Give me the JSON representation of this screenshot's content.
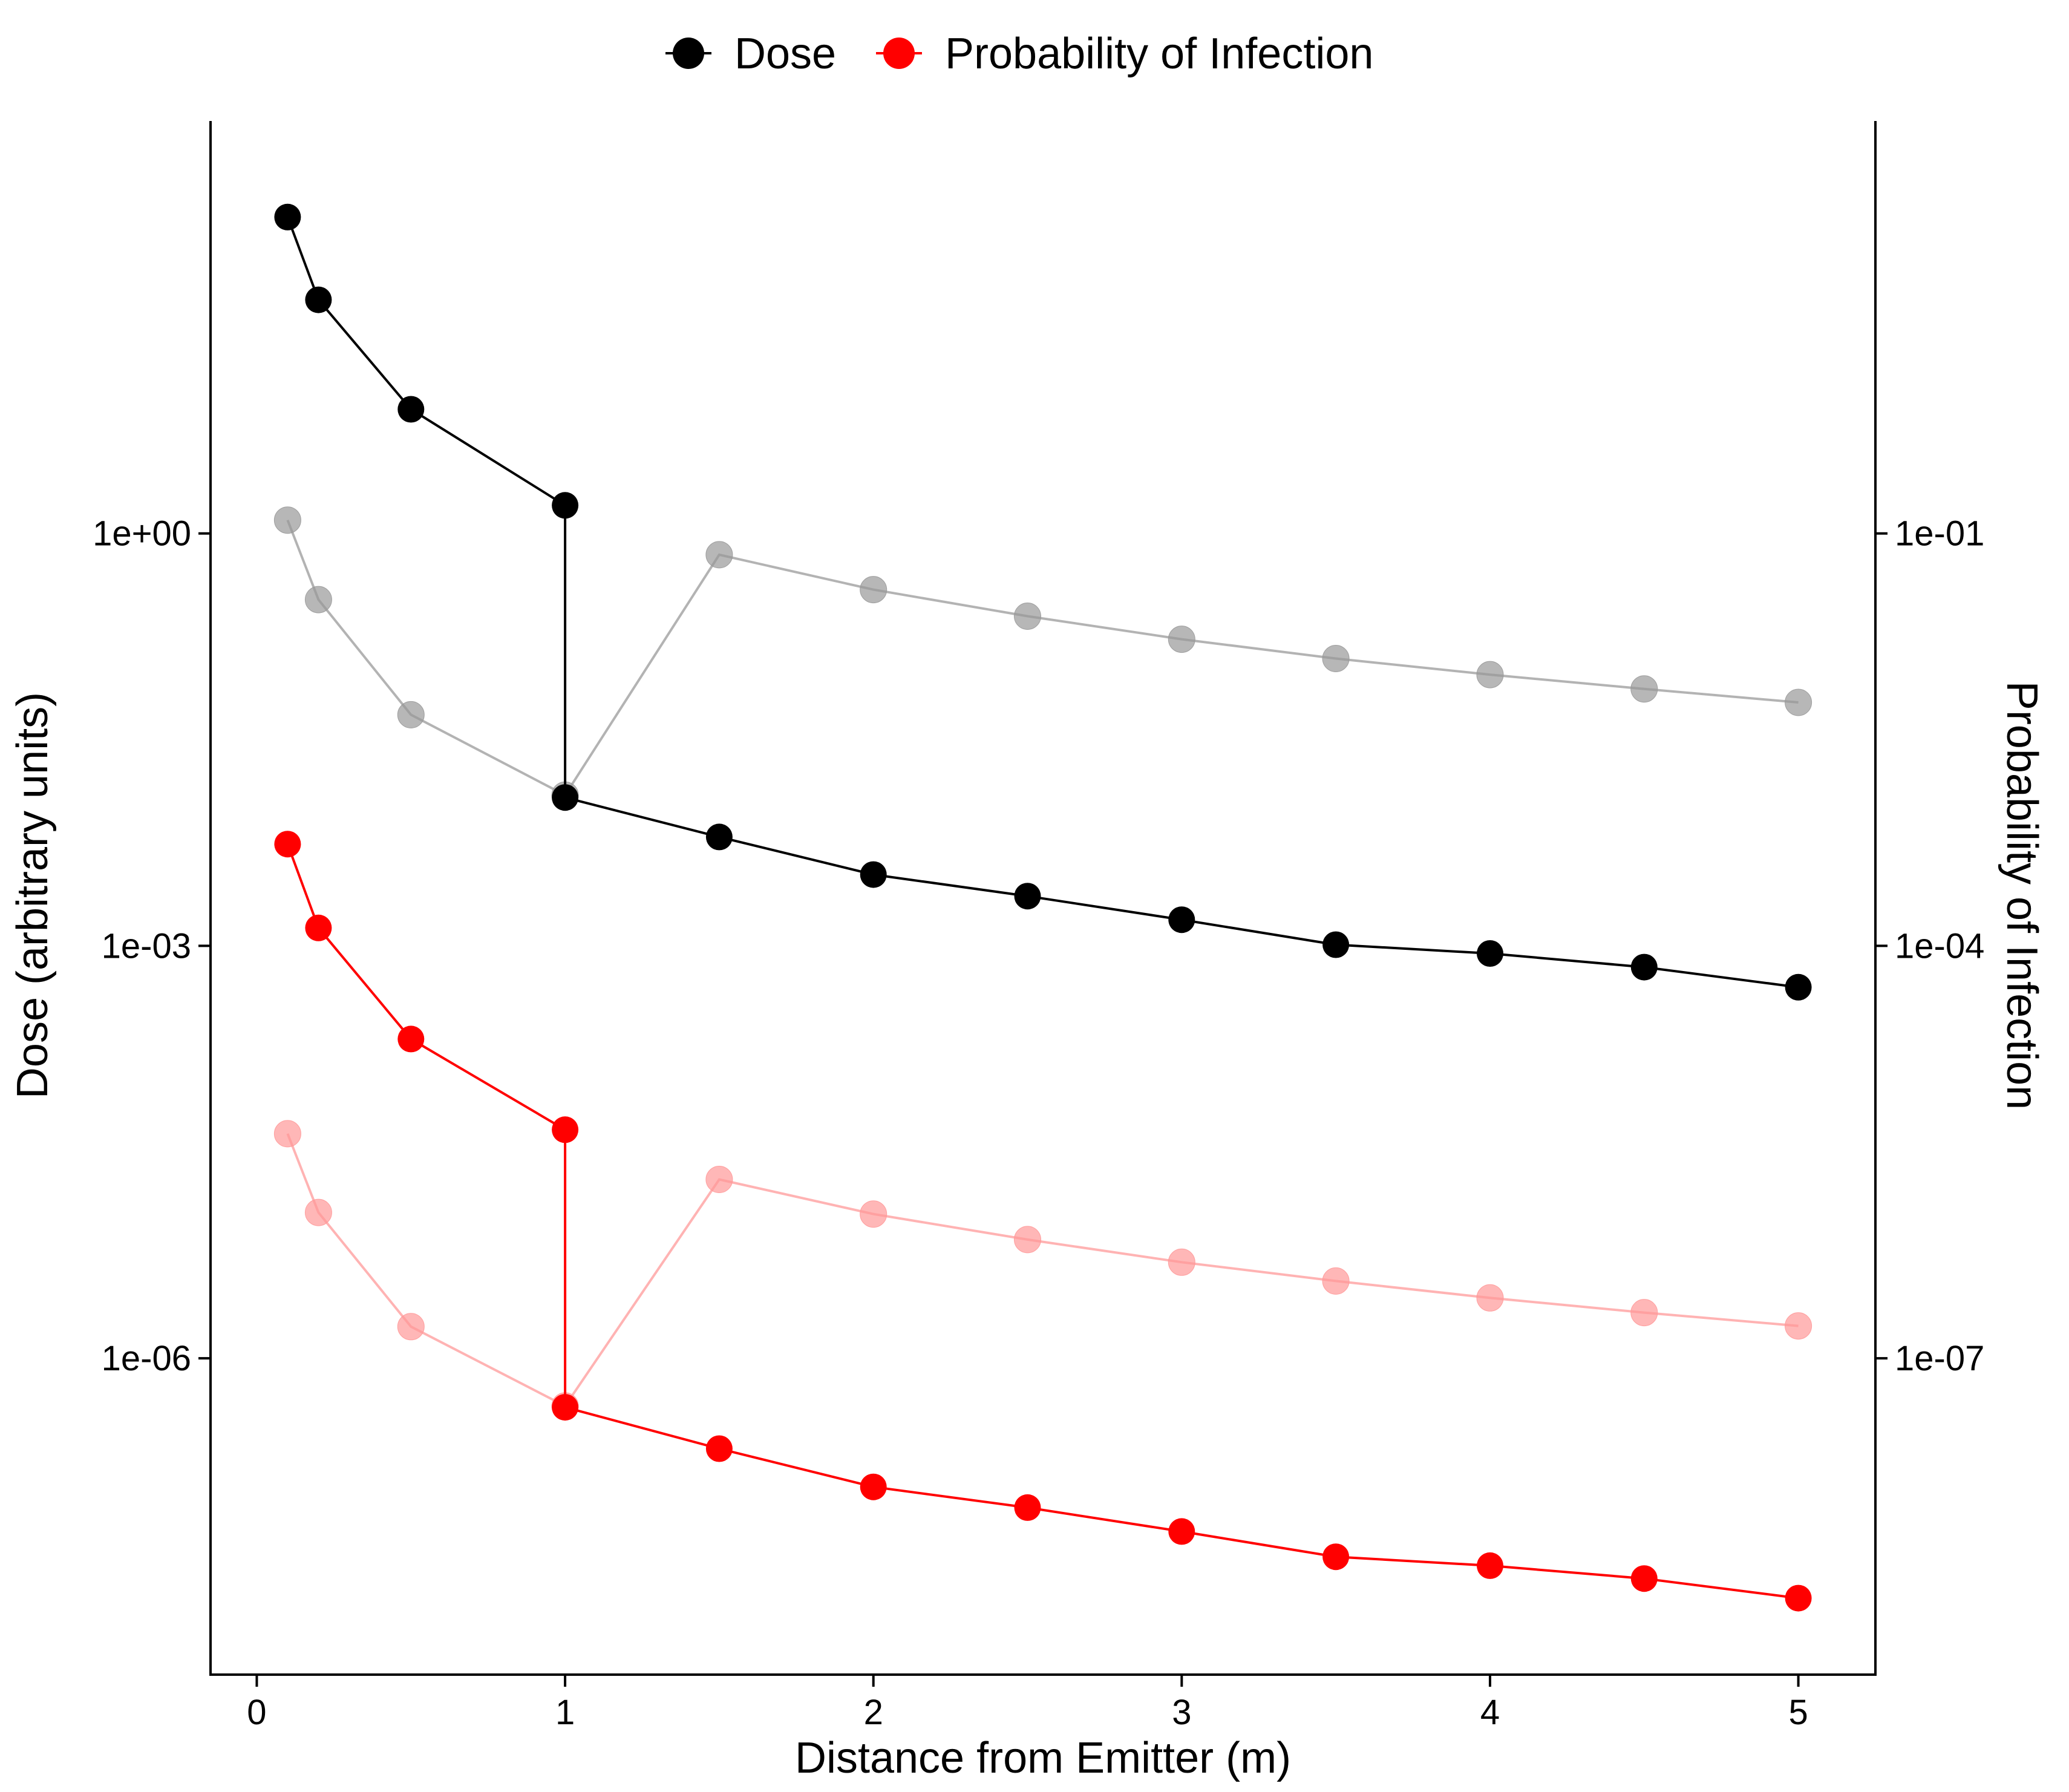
{
  "chart_data": {
    "type": "line",
    "xlabel": "Distance from Emitter (m)",
    "ylabel_left": "Dose (arbitrary units)",
    "ylabel_right": "Probability of Infection",
    "xlim": [
      -0.15,
      5.25
    ],
    "xticks": [
      0,
      1,
      2,
      3,
      4,
      5
    ],
    "left_axis": {
      "scale": "log10",
      "ylim": [
        5e-09,
        1000
      ],
      "ticks": [
        1,
        0.001,
        1e-06
      ],
      "tick_labels": [
        "1e+00",
        "1e-03",
        "1e-06"
      ]
    },
    "right_axis": {
      "scale": "log10",
      "ylim": [
        5e-10,
        100
      ],
      "ticks": [
        0.1,
        0.0001,
        1e-07
      ],
      "tick_labels": [
        "1e-01",
        "1e-04",
        "1e-07"
      ]
    },
    "legend": {
      "position": "top",
      "entries": [
        {
          "label": "Dose",
          "color": "#000000"
        },
        {
          "label": "Probability of Infection",
          "color": "#ff0000"
        }
      ]
    },
    "colors": {
      "dose": "#000000",
      "prob": "#ff0000",
      "dose_faded": "#999999",
      "prob_faded": "#ff9999"
    },
    "series": [
      {
        "name": "Dose",
        "axis": "left",
        "style": "solid",
        "x": [
          0.1,
          0.2,
          0.5,
          1.0,
          1.0,
          1.5,
          2.0,
          2.5,
          3.0,
          3.5,
          4.0,
          4.5,
          5.0
        ],
        "y": [
          200,
          50,
          8,
          1.6,
          0.012,
          0.0062,
          0.0033,
          0.0023,
          0.00155,
          0.00102,
          0.00088,
          0.0007,
          0.0005
        ]
      },
      {
        "name": "Dose",
        "axis": "left",
        "style": "faded",
        "x": [
          0.1,
          0.2,
          0.5,
          1.0,
          1.5,
          2.0,
          2.5,
          3.0,
          3.5,
          4.0,
          4.5,
          5.0
        ],
        "y": [
          1.25,
          0.33,
          0.048,
          0.0125,
          0.7,
          0.39,
          0.25,
          0.17,
          0.123,
          0.094,
          0.074,
          0.059
        ]
      },
      {
        "name": "Probability of Infection",
        "axis": "left",
        "style": "solid",
        "x": [
          0.1,
          0.2,
          0.5,
          1.0,
          1.0,
          1.5,
          2.0,
          2.5,
          3.0,
          3.5,
          4.0,
          4.5,
          5.0
        ],
        "y": [
          0.0055,
          0.00135,
          0.00021,
          4.6e-05,
          4.4e-07,
          2.2e-07,
          1.16e-07,
          8.2e-08,
          5.5e-08,
          3.6e-08,
          3.1e-08,
          2.5e-08,
          1.8e-08
        ]
      },
      {
        "name": "Probability of Infection",
        "axis": "left",
        "style": "faded",
        "x": [
          0.1,
          0.2,
          0.5,
          1.0,
          1.5,
          2.0,
          2.5,
          3.0,
          3.5,
          4.0,
          4.5,
          5.0
        ],
        "y": [
          4.3e-05,
          1.15e-05,
          1.7e-06,
          4.5e-07,
          2e-05,
          1.12e-05,
          7.3e-06,
          5e-06,
          3.65e-06,
          2.75e-06,
          2.15e-06,
          1.72e-06
        ]
      }
    ]
  }
}
